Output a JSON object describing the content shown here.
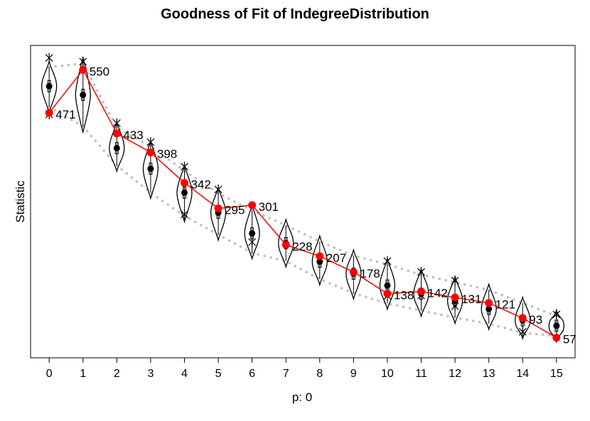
{
  "chart_data": {
    "type": "line",
    "title": "Goodness of Fit of IndegreeDistribution",
    "xlabel": "p: 0",
    "ylabel": "Statistic",
    "x": [
      0,
      1,
      2,
      3,
      4,
      5,
      6,
      7,
      8,
      9,
      10,
      11,
      12,
      13,
      14,
      15
    ],
    "xlim": [
      -0.55,
      15.55
    ],
    "ylim": [
      20,
      595
    ],
    "yticks_shown": false,
    "grid": false,
    "observed": {
      "name": "observed",
      "color": "#ff0000",
      "values": [
        471,
        550,
        433,
        398,
        342,
        295,
        301,
        228,
        207,
        178,
        138,
        142,
        131,
        121,
        93,
        57
      ]
    },
    "simulated": {
      "mean": [
        520,
        504,
        406,
        368,
        324,
        287,
        249,
        231,
        197,
        175,
        153,
        138,
        125,
        110,
        89,
        79
      ],
      "q05": [
        555,
        562,
        444,
        409,
        364,
        323,
        291,
        264,
        234,
        208,
        192,
        173,
        159,
        145,
        121,
        97
      ],
      "q95": [
        482,
        446,
        374,
        324,
        281,
        247,
        213,
        198,
        165,
        139,
        120,
        107,
        94,
        83,
        66,
        60
      ],
      "outliers_high": [
        572,
        565,
        452,
        417,
        372,
        330,
        null,
        null,
        null,
        null,
        198,
        178,
        162,
        null,
        null,
        100
      ],
      "outliers_low": [
        468,
        null,
        null,
        null,
        284,
        null,
        233,
        null,
        null,
        null,
        134,
        135,
        115,
        null,
        68,
        null
      ],
      "mean_color": "#000000",
      "band_color": "#bebebe"
    }
  }
}
